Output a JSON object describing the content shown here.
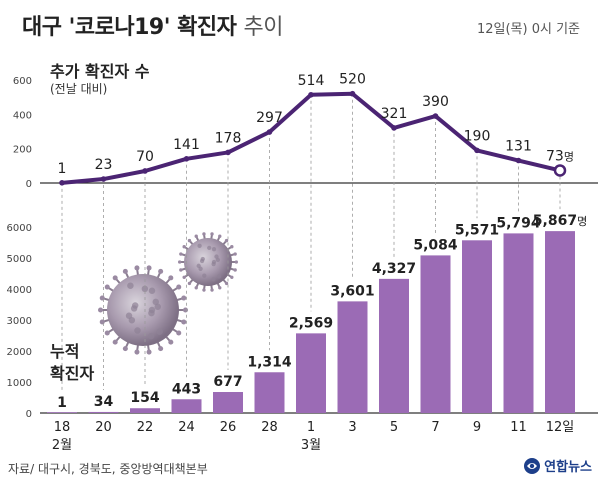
{
  "header": {
    "title_main": "대구 '코로나19' 확진자",
    "title_trend": "추이",
    "date_note": "12일(목) 0시 기준"
  },
  "top_chart": {
    "label": "추가 확진자 수",
    "sub": "(전날 대비)",
    "unit": "명"
  },
  "bottom_chart": {
    "label_line1": "누적",
    "label_line2": "확진자",
    "unit": "명"
  },
  "footer": {
    "source": "자료/ 대구시, 경북도, 중앙방역대책본부",
    "logo": "연합뉴스"
  },
  "colors": {
    "line": "#4b2473",
    "bar": "#9b6bb5",
    "axis": "#333333"
  },
  "chart_data": [
    {
      "type": "line",
      "title": "추가 확진자 수",
      "subtitle": "(전날 대비)",
      "x": [
        "18",
        "20",
        "22",
        "24",
        "26",
        "28",
        "1",
        "3",
        "5",
        "7",
        "9",
        "11",
        "12일"
      ],
      "values": [
        1,
        23,
        70,
        141,
        178,
        297,
        514,
        520,
        321,
        390,
        190,
        131,
        73
      ],
      "value_labels": [
        "1",
        "23",
        "70",
        "141",
        "178",
        "297",
        "514",
        "520",
        "321",
        "390",
        "190",
        "131",
        "73"
      ],
      "ylim": [
        0,
        600
      ],
      "yticks": [
        0,
        200,
        400,
        600
      ],
      "grid": false
    },
    {
      "type": "bar",
      "title": "누적 확진자",
      "categories": [
        "18",
        "20",
        "22",
        "24",
        "26",
        "28",
        "1",
        "3",
        "5",
        "7",
        "9",
        "11",
        "12일"
      ],
      "month_labels": {
        "0": "2월",
        "6": "3월"
      },
      "values": [
        1,
        34,
        154,
        443,
        677,
        1314,
        2569,
        3601,
        4327,
        5084,
        5571,
        5794,
        5867
      ],
      "value_labels": [
        "1",
        "34",
        "154",
        "443",
        "677",
        "1,314",
        "2,569",
        "3,601",
        "4,327",
        "5,084",
        "5,571",
        "5,794",
        "5,867"
      ],
      "ylim": [
        0,
        6000
      ],
      "yticks": [
        0,
        1000,
        2000,
        3000,
        4000,
        5000,
        6000
      ],
      "grid": false
    }
  ]
}
